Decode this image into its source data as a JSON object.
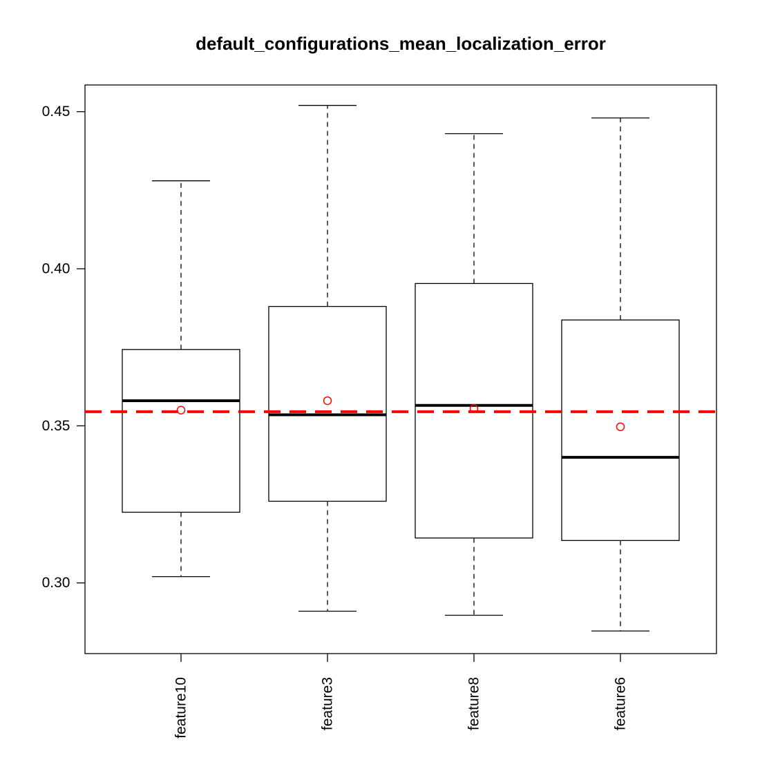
{
  "chart_data": {
    "type": "box",
    "title": "default_configurations_mean_localization_error",
    "xlabel": "",
    "ylabel": "",
    "ylim": [
      0.2775,
      0.4585
    ],
    "y_ticks": [
      0.3,
      0.35,
      0.4,
      0.45
    ],
    "y_tick_labels": [
      "0.30",
      "0.35",
      "0.40",
      "0.45"
    ],
    "categories": [
      "feature10",
      "feature3",
      "feature8",
      "feature6"
    ],
    "boxes": [
      {
        "name": "feature10",
        "whisker_low": 0.302,
        "q1": 0.3225,
        "median": 0.358,
        "q3": 0.3743,
        "whisker_high": 0.428,
        "mean": 0.355
      },
      {
        "name": "feature3",
        "whisker_low": 0.291,
        "q1": 0.326,
        "median": 0.3535,
        "q3": 0.388,
        "whisker_high": 0.452,
        "mean": 0.358
      },
      {
        "name": "feature8",
        "whisker_low": 0.2897,
        "q1": 0.3143,
        "median": 0.3565,
        "q3": 0.3953,
        "whisker_high": 0.443,
        "mean": 0.3555
      },
      {
        "name": "feature6",
        "whisker_low": 0.2847,
        "q1": 0.3135,
        "median": 0.34,
        "q3": 0.3837,
        "whisker_high": 0.448,
        "mean": 0.3497
      }
    ],
    "reference_line": {
      "value": 0.3545,
      "style": "dashed"
    },
    "grid": false,
    "legend": "none",
    "colors": {
      "box": "#000000",
      "mean_marker": "#ff0000",
      "reference_line": "#ff0000"
    }
  }
}
